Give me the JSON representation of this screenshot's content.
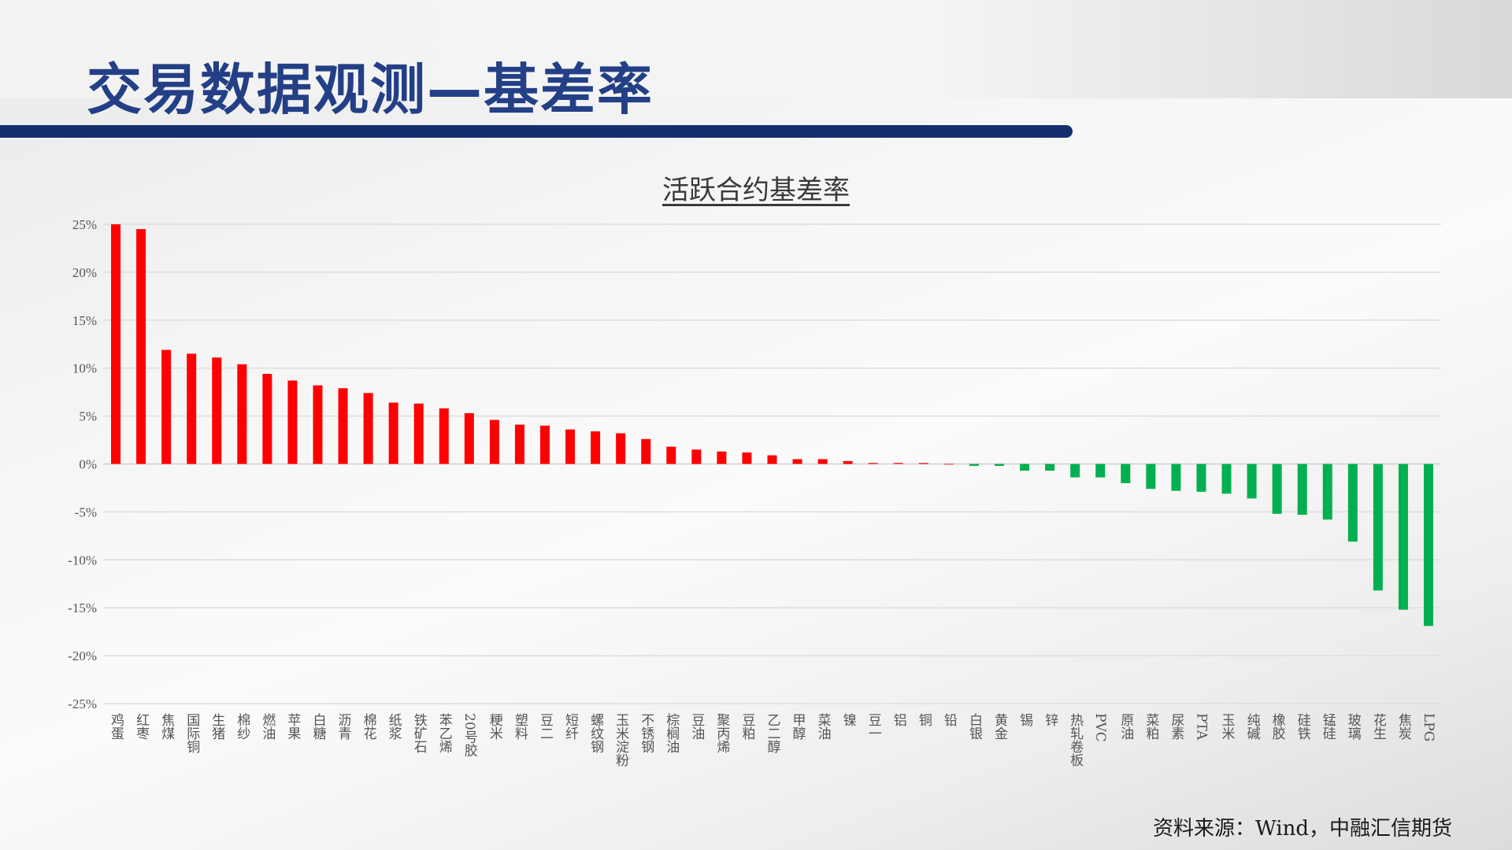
{
  "header": {
    "title": "交易数据观测—基差率"
  },
  "footer": {
    "source": "资料来源：Wind，中融汇信期货"
  },
  "chart_data": {
    "type": "bar",
    "title": "活跃合约基差率",
    "xlabel": "",
    "ylabel": "",
    "ylim": [
      -25,
      25
    ],
    "yticks": [
      "25%",
      "20%",
      "15%",
      "10%",
      "5%",
      "0%",
      "-5%",
      "-10%",
      "-15%",
      "-20%",
      "-25%"
    ],
    "grid": true,
    "colors": {
      "positive": "#ff0000",
      "negative": "#00b050",
      "title": "#233f86",
      "rule": "#132f6e"
    },
    "categories": [
      "鸡蛋",
      "红枣",
      "焦煤",
      "国际铜",
      "生猪",
      "棉纱",
      "燃油",
      "苹果",
      "白糖",
      "沥青",
      "棉花",
      "纸浆",
      "铁矿石",
      "苯乙烯",
      "20号胶",
      "粳米",
      "塑料",
      "豆二",
      "短纤",
      "螺纹钢",
      "玉米淀粉",
      "不锈钢",
      "棕榈油",
      "豆油",
      "聚丙烯",
      "豆粕",
      "乙二醇",
      "甲醇",
      "菜油",
      "镍",
      "豆一",
      "铝",
      "铜",
      "铅",
      "白银",
      "黄金",
      "锡",
      "锌",
      "热轧卷板",
      "PVC",
      "原油",
      "菜粕",
      "尿素",
      "PTA",
      "玉米",
      "纯碱",
      "橡胶",
      "硅铁",
      "锰硅",
      "玻璃",
      "花生",
      "焦炭",
      "LPG"
    ],
    "values": [
      25.0,
      24.5,
      11.9,
      11.5,
      11.1,
      10.4,
      9.4,
      8.7,
      8.2,
      7.9,
      7.4,
      6.4,
      6.3,
      5.8,
      5.3,
      4.6,
      4.1,
      4.0,
      3.6,
      3.4,
      3.2,
      2.6,
      1.8,
      1.5,
      1.3,
      1.2,
      0.9,
      0.5,
      0.5,
      0.3,
      0.1,
      0.1,
      0.1,
      0.0,
      -0.2,
      -0.2,
      -0.7,
      -0.7,
      -1.4,
      -1.4,
      -2.0,
      -2.6,
      -2.8,
      -2.9,
      -3.1,
      -3.6,
      -5.2,
      -5.3,
      -5.8,
      -8.1,
      -13.2,
      -15.2,
      -16.9
    ]
  }
}
